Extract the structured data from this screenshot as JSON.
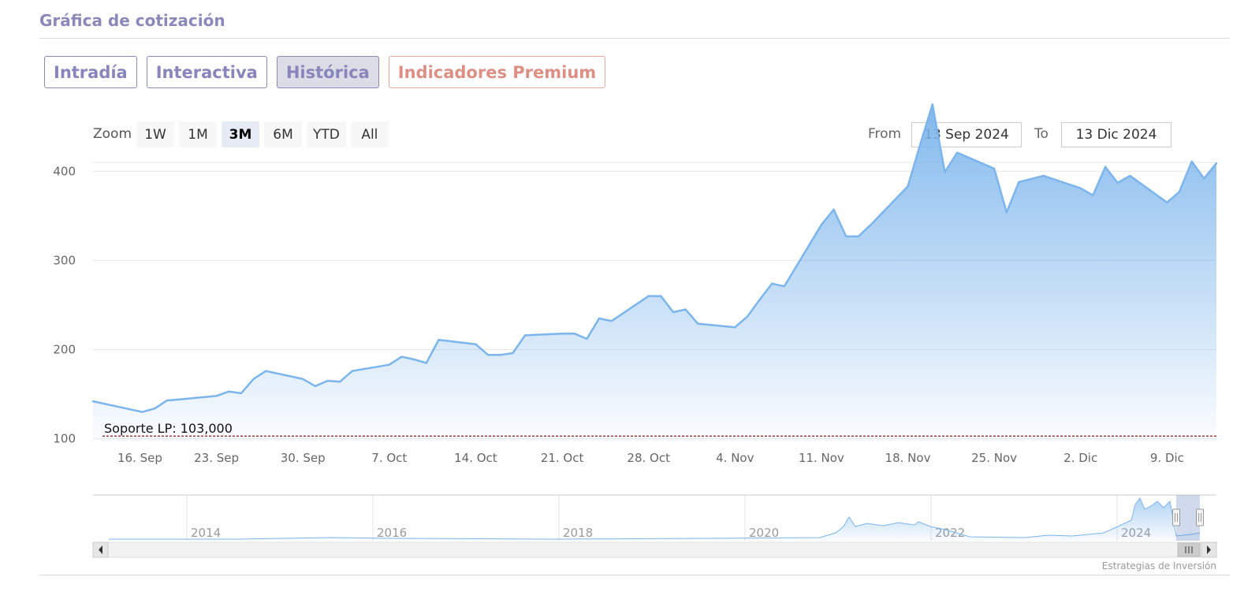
{
  "header": {
    "title": "Gráfica de cotización"
  },
  "tabs": [
    {
      "label": "Intradía"
    },
    {
      "label": "Interactiva"
    },
    {
      "label": "Histórica"
    },
    {
      "label": "Indicadores Premium"
    }
  ],
  "zoom": {
    "label": "Zoom",
    "buttons": [
      "1W",
      "1M",
      "3M",
      "6M",
      "YTD",
      "All"
    ],
    "selected": "3M"
  },
  "range": {
    "from_label": "From",
    "from_value": "13 Sep 2024",
    "to_label": "To",
    "to_value": "13 Dic 2024"
  },
  "credits": "Estrategias de Inversión",
  "colors": {
    "line": "#7cb5ec",
    "fill_top": "#7cb5ec",
    "support_line": "#8b1a1a",
    "tab_text": "#8785bb",
    "premium_text": "#dd8f84"
  },
  "chart_data": {
    "type": "area",
    "title": "",
    "xlabel": "",
    "ylabel": "",
    "ylim": [
      97,
      410
    ],
    "yticks": [
      100,
      200,
      300,
      400
    ],
    "x_ticks": [
      "16. Sep",
      "23. Sep",
      "30. Sep",
      "7. Oct",
      "14. Oct",
      "21. Oct",
      "28. Oct",
      "4. Nov",
      "11. Nov",
      "18. Nov",
      "25. Nov",
      "2. Dic",
      "9. Dic"
    ],
    "grid": true,
    "plot_line": {
      "label": "Soporte LP: 103,000",
      "value": 103
    },
    "series": [
      {
        "x": [
          "2024-09-13",
          "2024-09-16",
          "2024-09-17",
          "2024-09-18",
          "2024-09-19",
          "2024-09-20",
          "2024-09-23",
          "2024-09-24",
          "2024-09-25",
          "2024-09-26",
          "2024-09-27",
          "2024-09-30",
          "2024-10-01",
          "2024-10-02",
          "2024-10-03",
          "2024-10-04",
          "2024-10-07",
          "2024-10-08",
          "2024-10-09",
          "2024-10-10",
          "2024-10-11",
          "2024-10-14",
          "2024-10-15",
          "2024-10-16",
          "2024-10-17",
          "2024-10-18",
          "2024-10-21",
          "2024-10-22",
          "2024-10-23",
          "2024-10-24",
          "2024-10-25",
          "2024-10-28",
          "2024-10-29",
          "2024-10-30",
          "2024-10-31",
          "2024-11-01",
          "2024-11-04",
          "2024-11-05",
          "2024-11-06",
          "2024-11-07",
          "2024-11-08",
          "2024-11-11",
          "2024-11-12",
          "2024-11-13",
          "2024-11-14",
          "2024-11-15",
          "2024-11-18",
          "2024-11-19",
          "2024-11-20",
          "2024-11-21",
          "2024-11-22",
          "2024-11-25",
          "2024-11-26",
          "2024-11-27",
          "2024-11-29",
          "2024-12-02",
          "2024-12-03",
          "2024-12-04",
          "2024-12-05",
          "2024-12-06",
          "2024-12-09",
          "2024-12-10",
          "2024-12-11",
          "2024-12-12",
          "2024-12-13"
        ],
        "values": [
          142,
          133,
          130,
          134,
          143,
          144,
          148,
          153,
          151,
          167,
          176,
          167,
          159,
          165,
          164,
          176,
          183,
          192,
          189,
          185,
          211,
          206,
          194,
          194,
          196,
          216,
          218,
          218,
          212,
          235,
          232,
          260,
          260,
          242,
          245,
          229,
          225,
          237,
          256,
          274,
          271,
          340,
          357,
          327,
          327,
          340,
          383,
          430,
          475,
          399,
          421,
          403,
          354,
          388,
          395,
          381,
          373,
          405,
          387,
          395,
          365,
          377,
          411,
          392,
          409
        ]
      }
    ],
    "navigator": {
      "x_labels": [
        "2014",
        "2016",
        "2018",
        "2020",
        "2022",
        "2024"
      ]
    }
  }
}
